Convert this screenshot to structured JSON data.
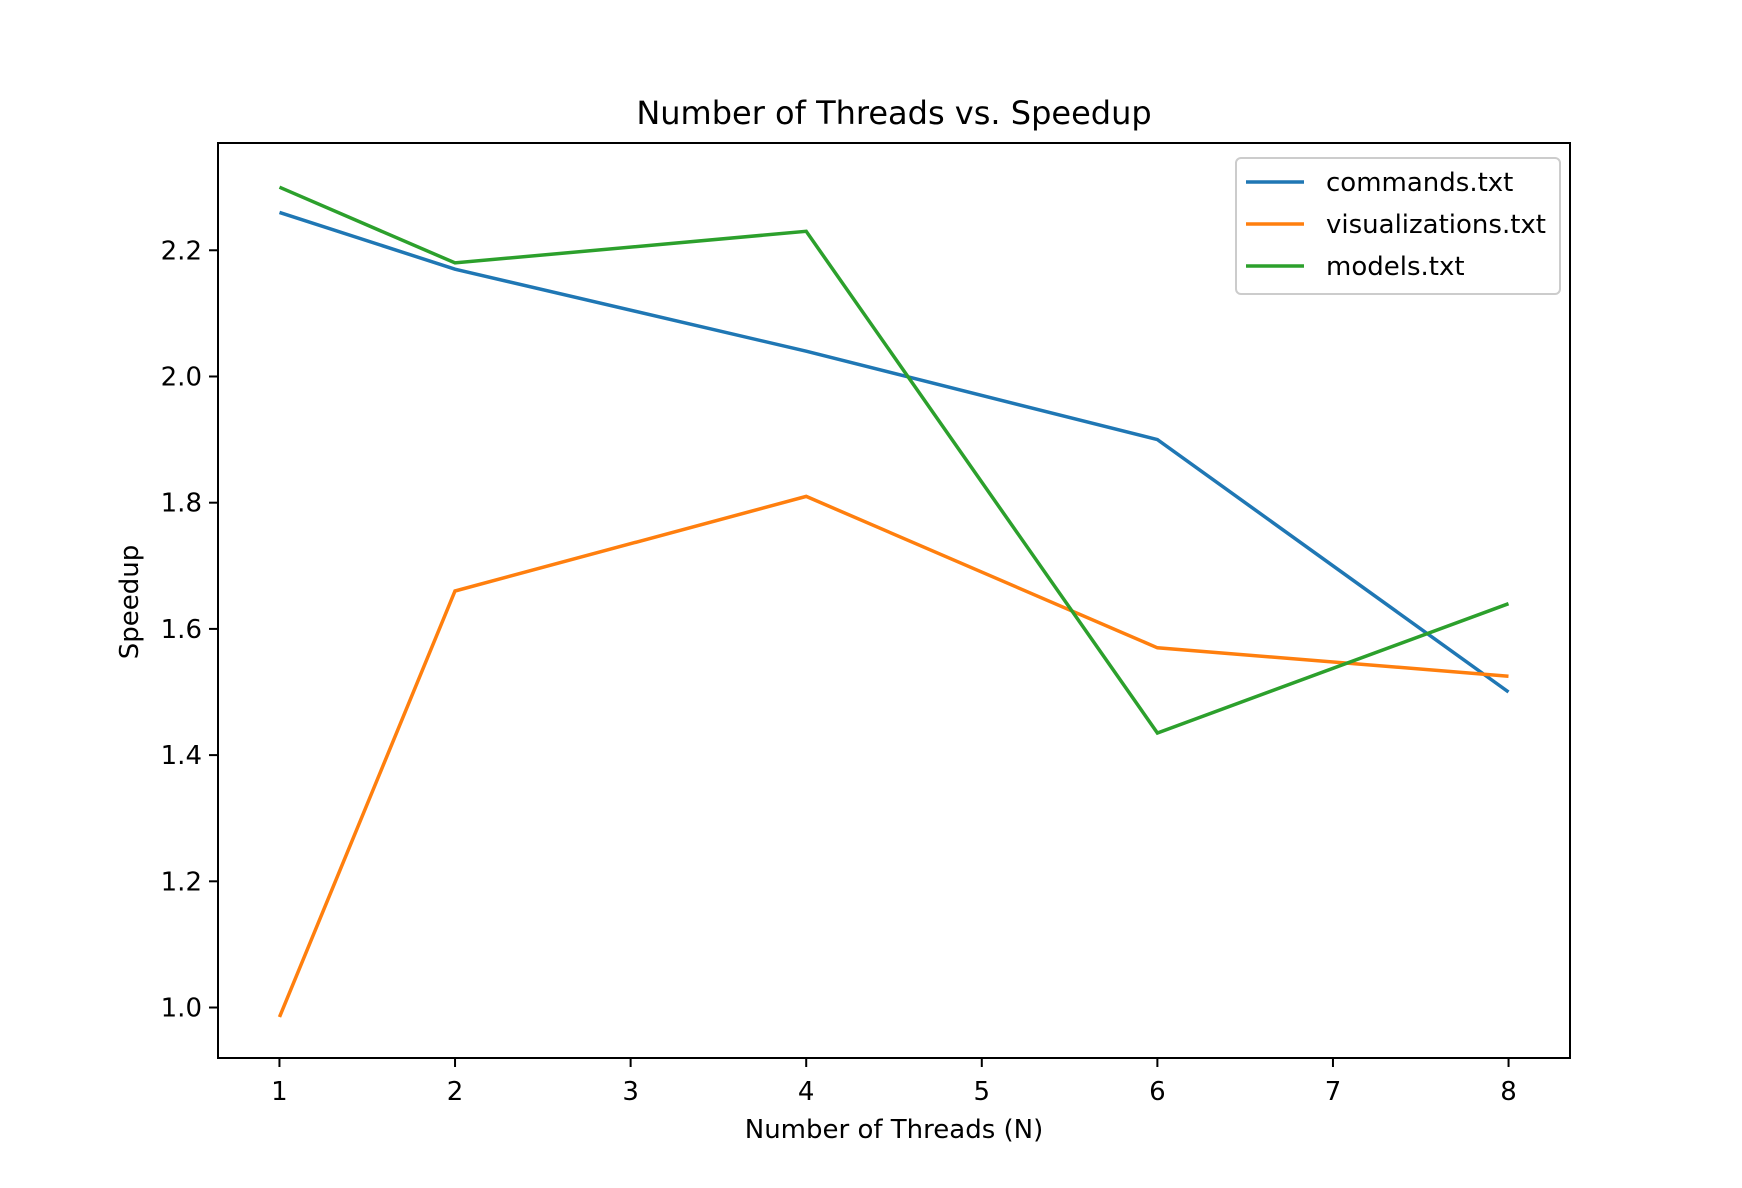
{
  "chart_data": {
    "type": "line",
    "title": "Number of Threads vs. Speedup",
    "xlabel": "Number of Threads (N)",
    "ylabel": "Speedup",
    "xlim": [
      0.65,
      8.35
    ],
    "ylim": [
      0.92,
      2.37
    ],
    "xticks": [
      1,
      2,
      3,
      4,
      5,
      6,
      7,
      8
    ],
    "xtick_labels": [
      "1",
      "2",
      "3",
      "4",
      "5",
      "6",
      "7",
      "8"
    ],
    "yticks": [
      1.0,
      1.2,
      1.4,
      1.6,
      1.8,
      2.0,
      2.2
    ],
    "ytick_labels": [
      "1.0",
      "1.2",
      "1.4",
      "1.6",
      "1.8",
      "2.0",
      "2.2"
    ],
    "grid": false,
    "legend_position": "top-right",
    "x": [
      1,
      2,
      4,
      6,
      8
    ],
    "series": [
      {
        "name": "commands.txt",
        "color": "#1f77b4",
        "values": [
          2.26,
          2.17,
          2.04,
          1.9,
          1.5
        ]
      },
      {
        "name": "visualizations.txt",
        "color": "#ff7f0e",
        "values": [
          0.985,
          1.66,
          1.81,
          1.57,
          1.525
        ]
      },
      {
        "name": "models.txt",
        "color": "#2ca02c",
        "values": [
          2.3,
          2.18,
          2.23,
          1.435,
          1.64
        ]
      }
    ]
  }
}
